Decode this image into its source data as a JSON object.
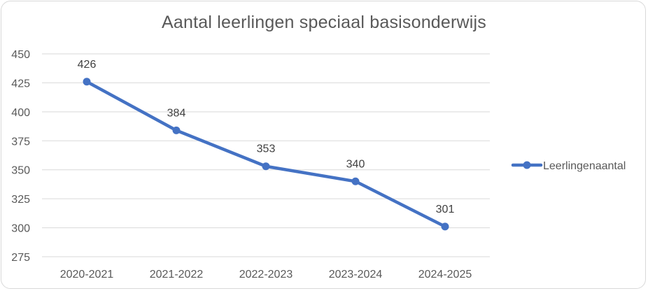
{
  "chart_data": {
    "type": "line",
    "title": "Aantal leerlingen speciaal basisonderwijs",
    "categories": [
      "2020-2021",
      "2021-2022",
      "2022-2023",
      "2023-2024",
      "2024-2025"
    ],
    "series": [
      {
        "name": "Leerlingenaantal",
        "values": [
          426,
          384,
          353,
          340,
          301
        ],
        "color": "#4472C4"
      }
    ],
    "ylim": [
      275,
      450
    ],
    "yticks": [
      275,
      300,
      325,
      350,
      375,
      400,
      425,
      450
    ],
    "grid": true,
    "legend_position": "right",
    "colors": {
      "grid": "#d9d9d9",
      "text": "#595959"
    }
  }
}
